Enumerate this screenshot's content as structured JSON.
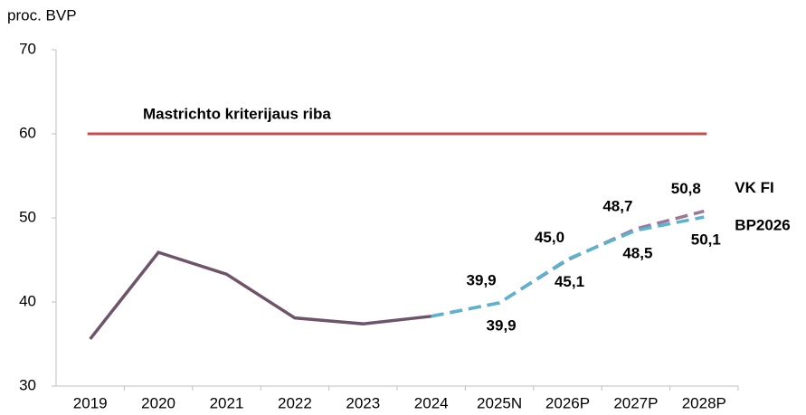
{
  "chart_data": {
    "type": "line",
    "y_label": "proc. BVP",
    "categories": [
      "2019",
      "2020",
      "2021",
      "2022",
      "2023",
      "2024",
      "2025N",
      "2026P",
      "2027P",
      "2028P"
    ],
    "ylim": [
      30,
      70
    ],
    "yticks": [
      30,
      40,
      50,
      60,
      70
    ],
    "reference_line": {
      "value": 60,
      "label": "Mastrichto kriterijaus riba",
      "color": "#c0504d"
    },
    "series": [
      {
        "color": "#6e5468",
        "dashed": false,
        "values": [
          35.6,
          45.9,
          43.3,
          38.1,
          37.4,
          38.3,
          null,
          null,
          null,
          null
        ]
      },
      {
        "name": "VK FI",
        "color": "#9b7898",
        "dashed": true,
        "label_side": "above",
        "values": [
          null,
          null,
          null,
          null,
          null,
          38.3,
          39.9,
          45.0,
          48.7,
          50.8
        ],
        "value_labels": [
          null,
          null,
          null,
          null,
          null,
          null,
          "39,9",
          "45,0",
          "48,7",
          "50,8"
        ]
      },
      {
        "name": "BP2026",
        "color": "#5ab3cf",
        "dashed": true,
        "label_side": "below",
        "values": [
          null,
          null,
          null,
          null,
          null,
          38.3,
          39.9,
          45.1,
          48.5,
          50.1
        ],
        "value_labels": [
          null,
          null,
          null,
          null,
          null,
          null,
          "39,9",
          "45,1",
          "48,5",
          "50,1"
        ]
      }
    ]
  }
}
